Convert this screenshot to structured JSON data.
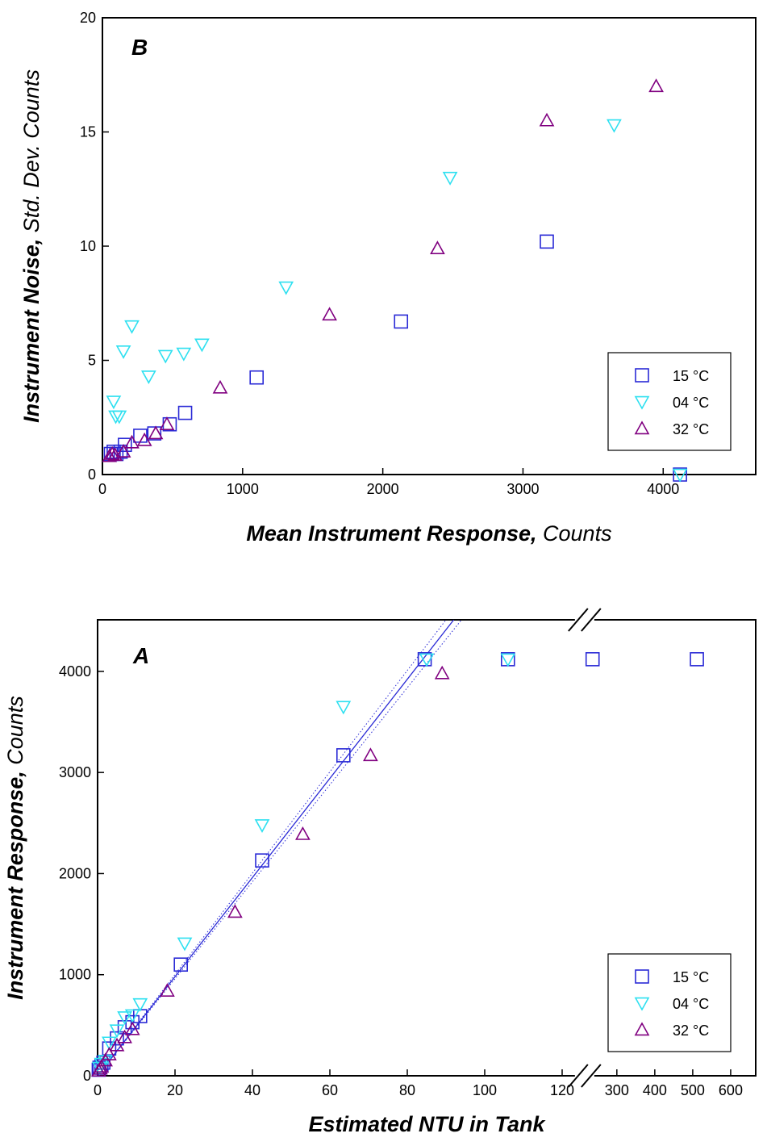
{
  "chart_data": [
    {
      "type": "scatter",
      "panel": "B",
      "xlabel": {
        "bold": "Mean Instrument Response,",
        "plain": "Counts"
      },
      "ylabel": {
        "bold": "Instrument Noise,",
        "plain": "Std. Dev. Counts"
      },
      "xlim": [
        0,
        4660
      ],
      "xticks": [
        0,
        1000,
        2000,
        3000,
        4000
      ],
      "ylim": [
        0,
        20
      ],
      "yticks": [
        0,
        5,
        10,
        15,
        20
      ],
      "legend": "lower right",
      "series": [
        {
          "name": "15 °C",
          "color": "#2a2ad6",
          "marker": "square",
          "x": [
            60,
            80,
            100,
            130,
            160,
            270,
            370,
            480,
            590,
            1100,
            2130,
            3170,
            4120
          ],
          "values": [
            0.9,
            1.0,
            0.9,
            1.0,
            1.3,
            1.7,
            1.8,
            2.2,
            2.7,
            4.25,
            6.7,
            10.2,
            0.0
          ]
        },
        {
          "name": "04 °C",
          "color": "#2ee0f0",
          "marker": "triangle-down",
          "x": [
            80,
            95,
            120,
            150,
            210,
            330,
            450,
            580,
            710,
            1310,
            2480,
            3650,
            4120
          ],
          "values": [
            3.2,
            2.55,
            2.55,
            5.4,
            6.5,
            4.3,
            5.2,
            5.3,
            5.7,
            8.2,
            13.0,
            15.3,
            0.0
          ]
        },
        {
          "name": "32 °C",
          "color": "#800080",
          "marker": "triangle-up",
          "x": [
            50,
            70,
            90,
            150,
            210,
            300,
            380,
            460,
            840,
            1620,
            2390,
            3170,
            3950
          ],
          "values": [
            0.8,
            0.9,
            0.85,
            1.0,
            1.4,
            1.5,
            1.8,
            2.2,
            3.8,
            7.0,
            9.9,
            15.5,
            17.0
          ]
        }
      ]
    },
    {
      "type": "scatter",
      "panel": "A",
      "xlabel": {
        "bold": "Estimated NTU in Tank"
      },
      "ylabel": {
        "bold": "Instrument Response,",
        "plain": "Counts"
      },
      "x_segments": [
        {
          "xlim": [
            0,
            125.8
          ],
          "xticks": [
            0,
            20,
            40,
            60,
            80,
            100,
            120
          ]
        },
        {
          "xlim": [
            215,
            666
          ],
          "xticks": [
            300,
            400,
            500,
            600
          ]
        }
      ],
      "ylim": [
        0,
        4510
      ],
      "yticks": [
        0,
        1000,
        2000,
        3000,
        4000
      ],
      "legend": "lower right",
      "series": [
        {
          "name": "15 °C",
          "color": "#2a2ad6",
          "marker": "square",
          "x": [
            0.3,
            0.5,
            1,
            1.5,
            3,
            5,
            7,
            9,
            11,
            21.5,
            42.5,
            63.5,
            84.5,
            106,
            236,
            511
          ],
          "values": [
            60,
            80,
            100,
            130,
            270,
            370,
            480,
            530,
            590,
            1100,
            2130,
            3170,
            4120,
            4120,
            4120,
            4120
          ]
        },
        {
          "name": "04 °C",
          "color": "#2ee0f0",
          "marker": "triangle-down",
          "x": [
            0.5,
            1,
            2,
            3,
            5,
            7,
            9,
            11,
            22.5,
            42.5,
            63.5,
            85,
            106
          ],
          "values": [
            80,
            120,
            150,
            330,
            450,
            580,
            600,
            710,
            1310,
            2480,
            3650,
            4120,
            4120
          ]
        },
        {
          "name": "32 °C",
          "color": "#800080",
          "marker": "triangle-up",
          "x": [
            0.3,
            0.7,
            1,
            2,
            3,
            5,
            7,
            9,
            18,
            35.5,
            53,
            70.5,
            89
          ],
          "values": [
            50,
            70,
            90,
            150,
            210,
            300,
            380,
            460,
            840,
            1620,
            2390,
            3170,
            3980
          ]
        }
      ],
      "lines": [
        {
          "color": "#2a2ad6",
          "style": "solid",
          "x": [
            0,
            92
          ],
          "values": [
            0,
            4510
          ]
        },
        {
          "color": "#2a2ad6",
          "style": "dotted",
          "x": [
            0,
            90
          ],
          "values": [
            0,
            4510
          ]
        },
        {
          "color": "#2a2ad6",
          "style": "dotted",
          "x": [
            0,
            94
          ],
          "values": [
            0,
            4510
          ]
        }
      ]
    }
  ]
}
